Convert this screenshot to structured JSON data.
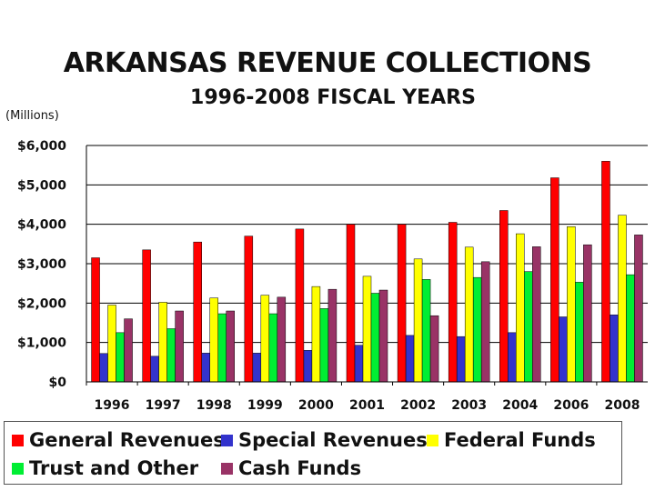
{
  "units_label": "(Millions)",
  "chart_data": {
    "type": "bar",
    "title": "ARKANSAS REVENUE COLLECTIONS",
    "subtitle": "1996-2008 FISCAL YEARS",
    "ylabel": "",
    "xlabel": "",
    "ylim": [
      0,
      6000
    ],
    "yticks": [
      0,
      1000,
      2000,
      3000,
      4000,
      5000,
      6000
    ],
    "ytick_labels": [
      "$0",
      "$1,000",
      "$2,000",
      "$3,000",
      "$4,000",
      "$5,000",
      "$6,000"
    ],
    "grid": "horizontal",
    "legend_position": "bottom",
    "categories": [
      "1996",
      "1997",
      "1998",
      "1999",
      "2000",
      "2001",
      "2002",
      "2003",
      "2004",
      "2006",
      "2008"
    ],
    "series": [
      {
        "name": "General Revenues",
        "color": "#ff0000",
        "values": [
          3150,
          3350,
          3550,
          3700,
          3880,
          4000,
          4000,
          4050,
          4350,
          5180,
          5600
        ]
      },
      {
        "name": "Special Revenues",
        "color": "#3333cc",
        "values": [
          720,
          650,
          730,
          730,
          800,
          930,
          1180,
          1150,
          1250,
          1650,
          1700
        ]
      },
      {
        "name": "Federal Funds",
        "color": "#ffff00",
        "values": [
          1950,
          2020,
          2130,
          2200,
          2420,
          2680,
          3120,
          3420,
          3760,
          3940,
          4230
        ]
      },
      {
        "name": "Trust and Other",
        "color": "#00ee33",
        "values": [
          1250,
          1350,
          1730,
          1730,
          1860,
          2250,
          2600,
          2650,
          2800,
          2530,
          2720
        ]
      },
      {
        "name": "Cash Funds",
        "color": "#993366",
        "values": [
          1600,
          1800,
          1800,
          2150,
          2350,
          2330,
          1680,
          3050,
          3430,
          3480,
          3730
        ]
      }
    ]
  }
}
